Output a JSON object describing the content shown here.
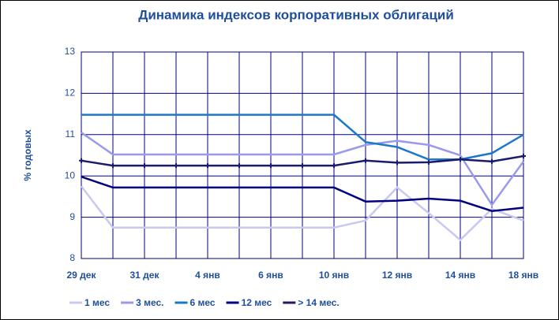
{
  "chart_data": {
    "type": "line",
    "title": "Динамика индексов корпоративных облигаций",
    "y_label": "% годовых",
    "categories": [
      "29 дек",
      null,
      "31 дек",
      null,
      "4 янв",
      null,
      "6 янв",
      null,
      "10 янв",
      null,
      "12 янв",
      null,
      "14 янв",
      null,
      "18 янв"
    ],
    "ylim": [
      8,
      13
    ],
    "yticks": [
      8,
      9,
      10,
      11,
      12,
      13
    ],
    "grid": true,
    "legend": "bottom",
    "series": [
      {
        "name": "1 мес",
        "color": "#c8c8f0",
        "values": [
          9.75,
          8.75,
          8.75,
          8.75,
          8.75,
          8.75,
          8.75,
          8.75,
          8.75,
          8.92,
          9.72,
          9.1,
          8.45,
          9.2,
          8.92
        ]
      },
      {
        "name": "3 мес.",
        "color": "#9999ee",
        "values": [
          11.05,
          10.52,
          10.52,
          10.52,
          10.52,
          10.52,
          10.52,
          10.52,
          10.52,
          10.75,
          10.85,
          10.75,
          10.5,
          9.3,
          10.35
        ]
      },
      {
        "name": "6 мес",
        "color": "#1e78c8",
        "values": [
          11.48,
          11.48,
          11.48,
          11.48,
          11.48,
          11.48,
          11.48,
          11.48,
          11.48,
          10.82,
          10.7,
          10.4,
          10.4,
          10.55,
          11.0
        ]
      },
      {
        "name": "12 мес",
        "color": "#000080",
        "values": [
          9.98,
          9.72,
          9.72,
          9.72,
          9.72,
          9.72,
          9.72,
          9.72,
          9.72,
          9.38,
          9.4,
          9.45,
          9.4,
          9.15,
          9.23
        ]
      },
      {
        "name": "> 14 мес.",
        "color": "#1a1a6e",
        "markers": true,
        "values": [
          10.37,
          10.25,
          10.25,
          10.25,
          10.25,
          10.25,
          10.25,
          10.25,
          10.25,
          10.37,
          10.32,
          10.33,
          10.4,
          10.35,
          10.48
        ]
      }
    ]
  }
}
